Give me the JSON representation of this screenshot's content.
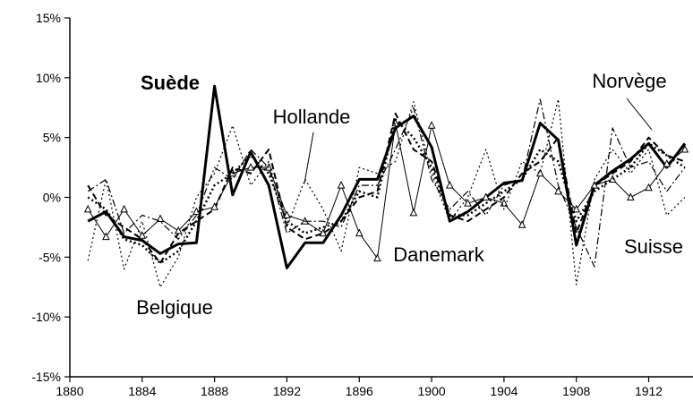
{
  "chart_data": {
    "type": "line",
    "xlim": [
      1880,
      1914.3
    ],
    "xticks": [
      1880,
      1884,
      1888,
      1892,
      1896,
      1900,
      1904,
      1908,
      1912
    ],
    "ylim": [
      -15,
      15
    ],
    "yticks": [
      {
        "value": -15,
        "label": "-15%"
      },
      {
        "value": -10,
        "label": "-10%"
      },
      {
        "value": -5,
        "label": "-5%"
      },
      {
        "value": 0,
        "label": "0%"
      },
      {
        "value": 5,
        "label": "5%"
      },
      {
        "value": 10,
        "label": "10%"
      },
      {
        "value": 15,
        "label": "15%"
      }
    ],
    "x": [
      1881,
      1882,
      1883,
      1884,
      1885,
      1886,
      1887,
      1888,
      1889,
      1890,
      1891,
      1892,
      1893,
      1894,
      1895,
      1896,
      1897,
      1898,
      1899,
      1900,
      1901,
      1902,
      1903,
      1904,
      1905,
      1906,
      1907,
      1908,
      1909,
      1910,
      1911,
      1912,
      1913,
      1914
    ],
    "series": [
      {
        "name": "Suède",
        "color": "#000000",
        "style": "solid",
        "linewidth": 3,
        "values": [
          -2.0,
          -1.2,
          -3.3,
          -3.6,
          -4.7,
          -3.9,
          -3.8,
          9.3,
          0.2,
          3.8,
          1.0,
          -5.9,
          -3.8,
          -3.8,
          -1.5,
          1.5,
          1.5,
          5.8,
          6.8,
          4.2,
          -2.0,
          -1.2,
          0.0,
          1.2,
          1.4,
          6.2,
          4.8,
          -4.0,
          1.0,
          2.2,
          3.2,
          4.5,
          2.5,
          4.5
        ]
      },
      {
        "name": "Hollande",
        "color": "#000000",
        "style": "dashed",
        "linewidth": 2,
        "values": [
          1.0,
          -1.5,
          -2.5,
          -3.5,
          -5.5,
          -3.0,
          -2.0,
          -1.0,
          2.5,
          2.0,
          4.0,
          -2.5,
          -3.5,
          -3.0,
          -2.0,
          0.0,
          0.5,
          7.0,
          4.0,
          3.0,
          -1.5,
          -2.0,
          -1.0,
          0.0,
          2.0,
          3.0,
          5.0,
          -3.0,
          1.0,
          2.0,
          3.0,
          5.0,
          3.5,
          3.0
        ]
      },
      {
        "name": "Danemark",
        "color": "#000000",
        "style": "solid",
        "linewidth": 1,
        "marker": "triangle",
        "values": [
          -1.0,
          -3.3,
          -1.0,
          -3.2,
          -1.8,
          -2.8,
          -1.2,
          -0.8,
          2.0,
          2.5,
          2.5,
          -1.5,
          -2.0,
          -3.0,
          1.0,
          -3.0,
          -5.1,
          6.2,
          -1.3,
          6.0,
          1.0,
          -0.5,
          0.0,
          -0.5,
          -2.3,
          2.0,
          0.5,
          -1.0,
          1.0,
          1.5,
          0.0,
          0.8,
          2.8,
          4.0
        ]
      },
      {
        "name": "Belgique",
        "color": "#000000",
        "style": "dotted",
        "linewidth": 1.2,
        "values": [
          -5.3,
          1.5,
          -6.0,
          -2.0,
          -7.5,
          -5.0,
          0.0,
          2.0,
          6.0,
          1.0,
          3.0,
          -2.5,
          1.5,
          -1.0,
          -4.5,
          2.5,
          2.0,
          3.0,
          8.0,
          2.0,
          -2.0,
          0.0,
          4.0,
          -1.0,
          3.0,
          2.0,
          8.2,
          -7.3,
          1.5,
          4.0,
          2.0,
          4.0,
          -1.5,
          0.0
        ]
      },
      {
        "name": "Norvège",
        "color": "#000000",
        "style": "dashdot",
        "linewidth": 1.2,
        "values": [
          0.5,
          1.5,
          -3.0,
          -1.5,
          -2.0,
          -3.5,
          -1.5,
          2.5,
          1.5,
          4.0,
          2.5,
          -3.0,
          -2.0,
          -2.0,
          -2.5,
          1.0,
          1.0,
          4.0,
          7.5,
          1.5,
          -1.0,
          0.5,
          -1.5,
          1.0,
          1.5,
          8.2,
          1.0,
          -2.5,
          -5.8,
          5.8,
          2.5,
          3.0,
          0.5,
          2.5
        ]
      },
      {
        "name": "Suisse",
        "color": "#000000",
        "style": "dotted",
        "linewidth": 2.5,
        "values": [
          0.0,
          -1.0,
          -3.5,
          -4.0,
          -5.5,
          -4.5,
          -2.0,
          1.0,
          2.0,
          3.5,
          2.0,
          -2.0,
          -3.0,
          -2.5,
          -2.0,
          0.5,
          0.0,
          6.5,
          5.0,
          2.5,
          -1.5,
          -1.5,
          -0.5,
          0.5,
          1.5,
          4.0,
          3.0,
          -2.0,
          0.5,
          1.5,
          2.5,
          4.5,
          3.5,
          2.5
        ]
      }
    ]
  }
}
